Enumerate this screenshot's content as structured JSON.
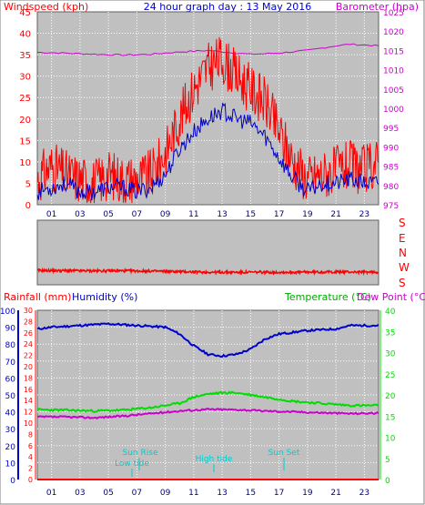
{
  "header": {
    "left_label": "Windspeed (kph)",
    "title": "24 hour graph day : 13 May 2016",
    "right_label": "Barometer (hpa)"
  },
  "wind_dir_labels": [
    "S",
    "E",
    "N",
    "W",
    "S"
  ],
  "lower_header": {
    "rain_label": "Rainfall (mm)",
    "humidity_label": "Humidity (%)",
    "temp_label": "Temperature (°C)",
    "dew_label": "Dew Point (°C)"
  },
  "sun_labels": {
    "sunrise": "Sun Rise",
    "lowtide": "Low tide",
    "hightide": "High tide",
    "sunset": "Sun Set"
  },
  "colors": {
    "plot_bg": "#c0c0c0",
    "wind": "#ff0000",
    "gust": "#0000cc",
    "barometer": "#cc00cc",
    "humidity": "#0000cc",
    "temperature": "#00dd00",
    "dewpoint": "#cc00cc",
    "rain": "#ff0000",
    "sun": "#00cccc"
  },
  "chart_data": [
    {
      "type": "line",
      "title": "24 hour graph day : 13 May 2016",
      "x_ticks": [
        "01",
        "03",
        "05",
        "07",
        "09",
        "11",
        "13",
        "15",
        "17",
        "19",
        "21",
        "23"
      ],
      "xlim": [
        0,
        24
      ],
      "y_left_label": "Windspeed (kph)",
      "y_left_ticks": [
        0,
        5,
        10,
        15,
        20,
        25,
        30,
        35,
        40,
        45
      ],
      "ylim_left": [
        0,
        45
      ],
      "y_right_label": "Barometer (hpa)",
      "y_right_ticks": [
        975,
        980,
        985,
        990,
        995,
        1000,
        1005,
        1010,
        1015,
        1020,
        1025
      ],
      "ylim_right": [
        975,
        1025
      ],
      "grid": true,
      "series": [
        {
          "axis": "right",
          "color": "#cc00cc",
          "x": [
            0,
            2,
            4,
            6,
            8,
            10,
            12,
            14,
            15,
            17,
            19,
            21,
            22,
            24
          ],
          "values": [
            1014.5,
            1014.3,
            1014.0,
            1013.8,
            1014.0,
            1014.6,
            1015.0,
            1014.3,
            1014.0,
            1014.3,
            1015.0,
            1016.2,
            1016.6,
            1016.2
          ]
        },
        {
          "axis": "left",
          "color": "#ff0000",
          "x": [
            0,
            1,
            2,
            3,
            4,
            5,
            6,
            7,
            8,
            9,
            10,
            11,
            12,
            13,
            14,
            15,
            16,
            17,
            18,
            19,
            20,
            21,
            22,
            23,
            24
          ],
          "values": [
            6,
            9,
            7,
            6,
            5,
            7,
            6,
            6,
            7,
            12,
            20,
            27,
            32,
            34,
            30,
            27,
            24,
            17,
            10,
            6,
            7,
            8,
            9,
            8,
            10
          ]
        },
        {
          "axis": "left",
          "color": "#0000cc",
          "x": [
            0,
            1,
            2,
            3,
            4,
            5,
            6,
            7,
            8,
            9,
            10,
            11,
            12,
            13,
            14,
            15,
            16,
            17,
            18,
            19,
            20,
            21,
            22,
            23,
            24
          ],
          "values": [
            3,
            4,
            5,
            3,
            3,
            4,
            4,
            3,
            4,
            7,
            13,
            17,
            20,
            22,
            20,
            19,
            16,
            11,
            6,
            3,
            5,
            5,
            6,
            5,
            5
          ]
        }
      ]
    },
    {
      "type": "line",
      "title": "",
      "x_ticks": [],
      "xlim": [
        0,
        24
      ],
      "y_labels": [
        "S",
        "E",
        "N",
        "W",
        "S"
      ],
      "ylim": [
        0,
        360
      ],
      "series": [
        {
          "color": "#ff0000",
          "x": [
            0,
            3,
            6,
            9,
            12,
            15,
            18,
            21,
            24
          ],
          "values": [
            80,
            78,
            78,
            75,
            70,
            70,
            70,
            72,
            70
          ]
        }
      ]
    },
    {
      "type": "line",
      "title": "",
      "x_ticks": [
        "01",
        "03",
        "05",
        "07",
        "09",
        "11",
        "13",
        "15",
        "17",
        "19",
        "21",
        "23"
      ],
      "xlim": [
        0,
        24
      ],
      "y_left_outer_label": "Humidity (%)",
      "y_left_outer_ticks": [
        0,
        10,
        20,
        30,
        40,
        50,
        60,
        70,
        80,
        90,
        100
      ],
      "ylim_humidity": [
        0,
        100
      ],
      "y_left_inner_label": "Rainfall (mm)",
      "y_left_inner_ticks": [
        0,
        2,
        4,
        6,
        8,
        10,
        12,
        14,
        16,
        18,
        20,
        22,
        24,
        26,
        28,
        30
      ],
      "ylim_rain": [
        0,
        30
      ],
      "y_right_label": "Temperature (°C)",
      "y_right_ticks": [
        0,
        5,
        10,
        15,
        20,
        25,
        30,
        35,
        40
      ],
      "ylim_temp": [
        0,
        40
      ],
      "grid": true,
      "series": [
        {
          "axis": "humidity",
          "color": "#0000cc",
          "x": [
            0,
            1,
            3,
            5,
            7,
            9,
            10,
            11,
            12,
            13,
            14,
            15,
            16,
            17,
            19,
            21,
            22,
            24
          ],
          "values": [
            89,
            90,
            91,
            92,
            91,
            90,
            86,
            79,
            74,
            73,
            74,
            77,
            83,
            86,
            88,
            89,
            91,
            91
          ]
        },
        {
          "axis": "temp",
          "color": "#00dd00",
          "x": [
            0,
            2,
            4,
            6,
            8,
            10,
            11,
            12,
            13,
            14,
            15,
            16,
            17,
            18,
            20,
            22,
            24
          ],
          "values": [
            16.5,
            16.4,
            16.2,
            16.4,
            17.0,
            18.0,
            19.5,
            20.2,
            20.5,
            20.5,
            20.0,
            19.5,
            19.0,
            18.5,
            18.0,
            17.5,
            17.5
          ]
        },
        {
          "axis": "temp",
          "color": "#cc00cc",
          "x": [
            0,
            2,
            4,
            6,
            8,
            10,
            12,
            14,
            16,
            18,
            20,
            22,
            24
          ],
          "values": [
            14.8,
            14.8,
            14.6,
            15.0,
            15.6,
            16.2,
            16.6,
            16.5,
            16.2,
            16.0,
            15.8,
            15.6,
            15.7
          ]
        },
        {
          "axis": "rain",
          "color": "#ff0000",
          "x": [
            0,
            24
          ],
          "values": [
            0,
            0
          ]
        }
      ]
    }
  ]
}
